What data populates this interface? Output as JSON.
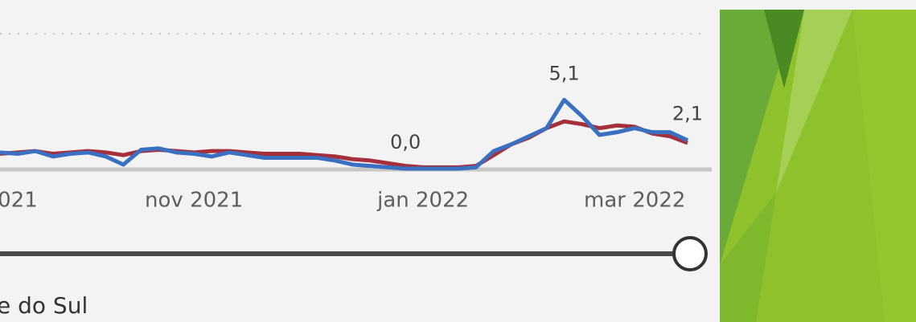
{
  "chart_data": {
    "type": "line",
    "categories": [
      null,
      "021",
      null,
      null,
      null,
      null,
      null,
      null,
      null,
      null,
      null,
      "nov 2021",
      null,
      null,
      null,
      null,
      null,
      null,
      null,
      null,
      null,
      null,
      null,
      null,
      "jan 2022",
      null,
      null,
      null,
      null,
      null,
      null,
      null,
      null,
      null,
      null,
      null,
      "mar 2022",
      null,
      null,
      null
    ],
    "series": [
      {
        "color": "#3a70c2",
        "values": [
          1.2,
          1.1,
          1.3,
          0.9,
          1.1,
          1.2,
          0.9,
          0.3,
          1.4,
          1.5,
          1.2,
          1.1,
          0.9,
          1.2,
          1.0,
          0.8,
          0.8,
          0.8,
          0.8,
          0.6,
          0.3,
          0.2,
          0.1,
          0.0,
          0.0,
          0.0,
          0.0,
          0.1,
          1.3,
          1.8,
          2.4,
          3.0,
          5.1,
          3.9,
          2.5,
          2.7,
          3.0,
          2.7,
          2.7,
          2.1
        ],
        "value_labels": [
          null,
          null,
          null,
          null,
          null,
          null,
          null,
          null,
          null,
          null,
          null,
          null,
          null,
          null,
          null,
          null,
          null,
          null,
          null,
          null,
          null,
          null,
          null,
          "0,0",
          null,
          null,
          null,
          null,
          null,
          null,
          null,
          null,
          "5,1",
          null,
          null,
          null,
          null,
          null,
          null,
          "2,1"
        ]
      },
      {
        "color": "#a5303b",
        "values": [
          1.1,
          1.2,
          1.3,
          1.1,
          1.2,
          1.3,
          1.2,
          1.0,
          1.3,
          1.4,
          1.3,
          1.2,
          1.3,
          1.3,
          1.2,
          1.1,
          1.1,
          1.1,
          1.0,
          0.9,
          0.7,
          0.6,
          0.4,
          0.2,
          0.1,
          0.1,
          0.1,
          0.2,
          1.0,
          1.8,
          2.3,
          3.0,
          3.5,
          3.3,
          3.0,
          3.2,
          3.1,
          2.6,
          2.4,
          1.9
        ]
      }
    ],
    "ylim": [
      0,
      10
    ]
  },
  "slicer_label": "e do Sul"
}
